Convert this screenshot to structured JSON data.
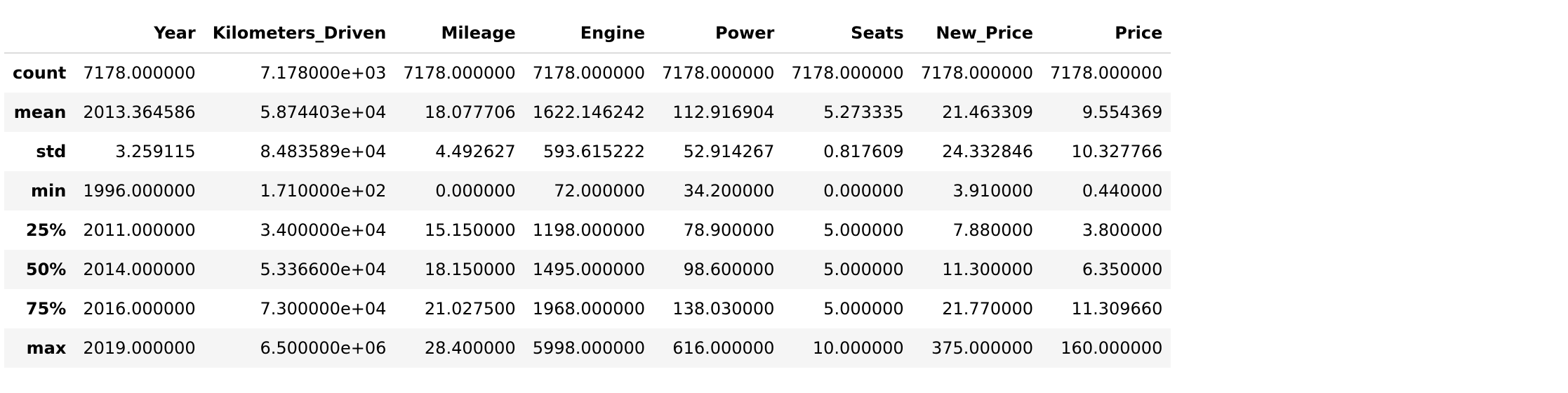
{
  "table": {
    "columns": [
      "",
      "Year",
      "Kilometers_Driven",
      "Mileage",
      "Engine",
      "Power",
      "Seats",
      "New_Price",
      "Price"
    ],
    "rows": [
      {
        "label": "count",
        "values": [
          "7178.000000",
          "7.178000e+03",
          "7178.000000",
          "7178.000000",
          "7178.000000",
          "7178.000000",
          "7178.000000",
          "7178.000000"
        ]
      },
      {
        "label": "mean",
        "values": [
          "2013.364586",
          "5.874403e+04",
          "18.077706",
          "1622.146242",
          "112.916904",
          "5.273335",
          "21.463309",
          "9.554369"
        ]
      },
      {
        "label": "std",
        "values": [
          "3.259115",
          "8.483589e+04",
          "4.492627",
          "593.615222",
          "52.914267",
          "0.817609",
          "24.332846",
          "10.327766"
        ]
      },
      {
        "label": "min",
        "values": [
          "1996.000000",
          "1.710000e+02",
          "0.000000",
          "72.000000",
          "34.200000",
          "0.000000",
          "3.910000",
          "0.440000"
        ]
      },
      {
        "label": "25%",
        "values": [
          "2011.000000",
          "3.400000e+04",
          "15.150000",
          "1198.000000",
          "78.900000",
          "5.000000",
          "7.880000",
          "3.800000"
        ]
      },
      {
        "label": "50%",
        "values": [
          "2014.000000",
          "5.336600e+04",
          "18.150000",
          "1495.000000",
          "98.600000",
          "5.000000",
          "11.300000",
          "6.350000"
        ]
      },
      {
        "label": "75%",
        "values": [
          "2016.000000",
          "7.300000e+04",
          "21.027500",
          "1968.000000",
          "138.030000",
          "5.000000",
          "21.770000",
          "11.309660"
        ]
      },
      {
        "label": "max",
        "values": [
          "2019.000000",
          "6.500000e+06",
          "28.400000",
          "5998.000000",
          "616.000000",
          "10.000000",
          "375.000000",
          "160.000000"
        ]
      }
    ]
  },
  "colors": {
    "stripe": "#f5f5f5",
    "header_rule": "#bdbdbd"
  }
}
